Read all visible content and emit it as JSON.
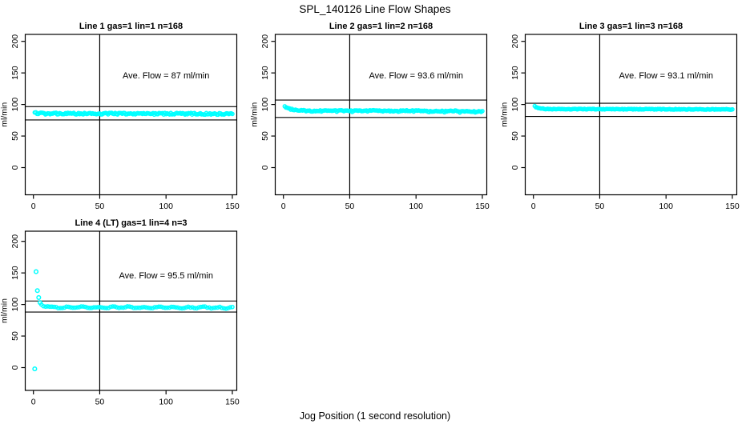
{
  "header": {
    "title": "SPL_140126  Line Flow Shapes"
  },
  "footer": {
    "xlabel": "Jog Position (1 second resolution)"
  },
  "colors": {
    "marker": "#00FFFF",
    "axis": "#000000",
    "background": "#FFFFFF"
  },
  "chart_data": [
    {
      "type": "scatter",
      "title": "Line 1 gas=1 lin=1 n=168",
      "annotation": "Ave. Flow =  87  ml/min",
      "ave_flow_ml_min": 87,
      "n": 168,
      "ylabel": "ml/min",
      "xticks": [
        0,
        50,
        100,
        150
      ],
      "yticks": [
        0,
        50,
        100,
        150,
        200
      ],
      "xlim": [
        -6,
        153
      ],
      "ylim": [
        -43,
        210
      ],
      "vline_x": 50,
      "ref_lines_y": [
        96.5,
        75.5
      ],
      "grid": false,
      "series": {
        "x_start": 1,
        "x_end": 150,
        "count": 168,
        "anchors": [
          [
            1,
            88
          ],
          [
            2,
            86.2
          ],
          [
            4,
            85.6
          ],
          [
            80,
            85.4
          ],
          [
            150,
            85.2
          ]
        ],
        "noise": 1.4,
        "dip_every": 0,
        "dip_amp": 0,
        "wave_amp": 0,
        "wave_freq": 0,
        "seed": 11
      },
      "outliers": []
    },
    {
      "type": "scatter",
      "title": "Line 2 gas=1 lin=2 n=168",
      "annotation": "Ave. Flow =  93.6  ml/min",
      "ave_flow_ml_min": 93.6,
      "n": 168,
      "ylabel": "ml/min",
      "xticks": [
        0,
        50,
        100,
        150
      ],
      "yticks": [
        0,
        50,
        100,
        150,
        200
      ],
      "xlim": [
        -6,
        153
      ],
      "ylim": [
        -43,
        210
      ],
      "vline_x": 50,
      "ref_lines_y": [
        107,
        79.5
      ],
      "grid": false,
      "series": {
        "x_start": 1,
        "x_end": 150,
        "count": 168,
        "anchors": [
          [
            1,
            96.8
          ],
          [
            2,
            95.2
          ],
          [
            3,
            94.2
          ],
          [
            5,
            92.6
          ],
          [
            8,
            91.5
          ],
          [
            12,
            90.6
          ],
          [
            20,
            90.1
          ],
          [
            60,
            90.2
          ],
          [
            100,
            89.8
          ],
          [
            150,
            89.2
          ]
        ],
        "noise": 0.75,
        "dip_every": 13,
        "dip_amp": 1.5,
        "wave_amp": 0.25,
        "wave_freq": 0.5,
        "seed": 23
      },
      "outliers": []
    },
    {
      "type": "scatter",
      "title": "Line 3 gas=1 lin=3 n=168",
      "annotation": "Ave. Flow =  93.1  ml/min",
      "ave_flow_ml_min": 93.1,
      "n": 168,
      "ylabel": "ml/min",
      "xticks": [
        0,
        50,
        100,
        150
      ],
      "yticks": [
        0,
        50,
        100,
        150,
        200
      ],
      "xlim": [
        -6,
        153
      ],
      "ylim": [
        -43,
        210
      ],
      "vline_x": 50,
      "ref_lines_y": [
        102,
        81
      ],
      "grid": false,
      "series": {
        "x_start": 1,
        "x_end": 150,
        "count": 168,
        "anchors": [
          [
            1,
            97.2
          ],
          [
            2,
            95.6
          ],
          [
            3,
            94.6
          ],
          [
            5,
            93.6
          ],
          [
            9,
            93
          ],
          [
            15,
            92.7
          ],
          [
            150,
            92.3
          ]
        ],
        "noise": 0.55,
        "dip_every": 0,
        "dip_amp": 0,
        "wave_amp": 0,
        "wave_freq": 0,
        "seed": 37
      },
      "outliers": []
    },
    {
      "type": "scatter",
      "title": "Line 4 (LT) gas=1 lin=4 n=3",
      "annotation": "Ave. Flow =  95.5  ml/min",
      "ave_flow_ml_min": 95.5,
      "n": 3,
      "ylabel": "ml/min",
      "xticks": [
        0,
        50,
        100,
        150
      ],
      "yticks": [
        0,
        50,
        100,
        150,
        200
      ],
      "xlim": [
        -6,
        153
      ],
      "ylim": [
        -43,
        210
      ],
      "vline_x": 50,
      "ref_lines_y": [
        105.5,
        88
      ],
      "grid": false,
      "series": {
        "x_start": 6,
        "x_end": 150,
        "count": 92,
        "anchors": [
          [
            6,
            99.3
          ],
          [
            8,
            97.4
          ],
          [
            12,
            96.2
          ],
          [
            18,
            95.6
          ],
          [
            150,
            95
          ]
        ],
        "noise": 0.6,
        "dip_every": 0,
        "dip_amp": 0,
        "wave_amp": 1.0,
        "wave_freq": 0.55,
        "seed": 41
      },
      "outliers": [
        [
          1,
          -2
        ],
        [
          2,
          152
        ],
        [
          3,
          122
        ],
        [
          4,
          111
        ],
        [
          5,
          103
        ]
      ]
    }
  ]
}
